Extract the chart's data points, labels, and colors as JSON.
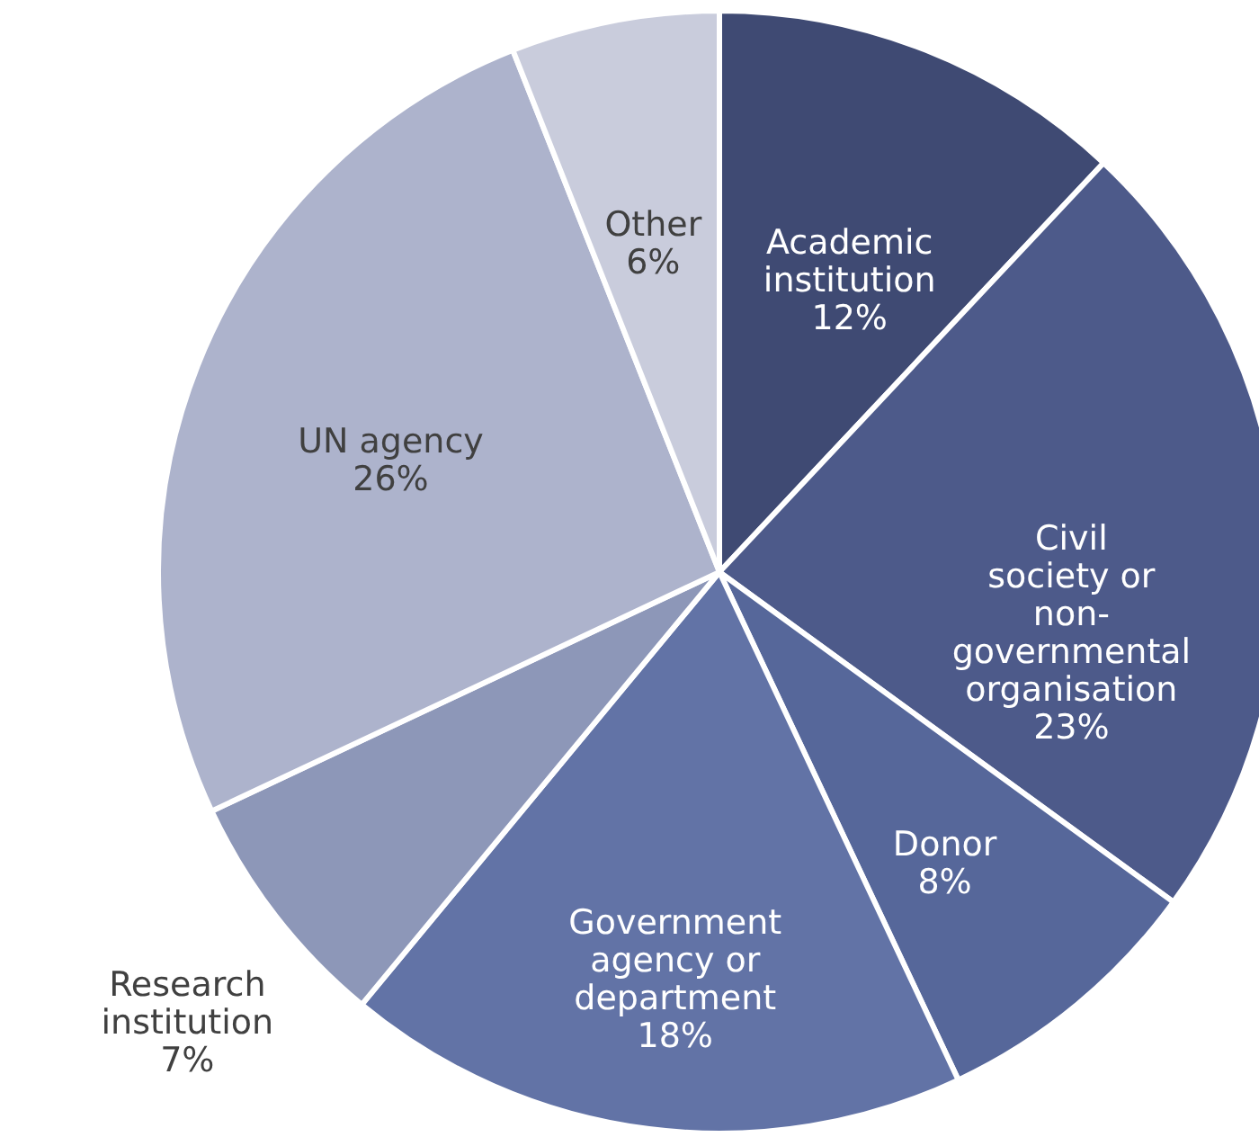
{
  "chart_data": {
    "type": "pie",
    "categories": [
      "Academic institution",
      "Civil society or non-governmental organisation",
      "Donor",
      "Government agency or department",
      "Research institution",
      "UN agency",
      "Other"
    ],
    "values": [
      12,
      23,
      8,
      18,
      7,
      26,
      6
    ],
    "colors": [
      "#3f4a73",
      "#4d5a8a",
      "#56679a",
      "#6273a6",
      "#8d97b8",
      "#adb3cc",
      "#c9ccdc"
    ],
    "value_labels": [
      "12%",
      "23%",
      "8%",
      "18%",
      "7%",
      "26%",
      "6%"
    ]
  }
}
